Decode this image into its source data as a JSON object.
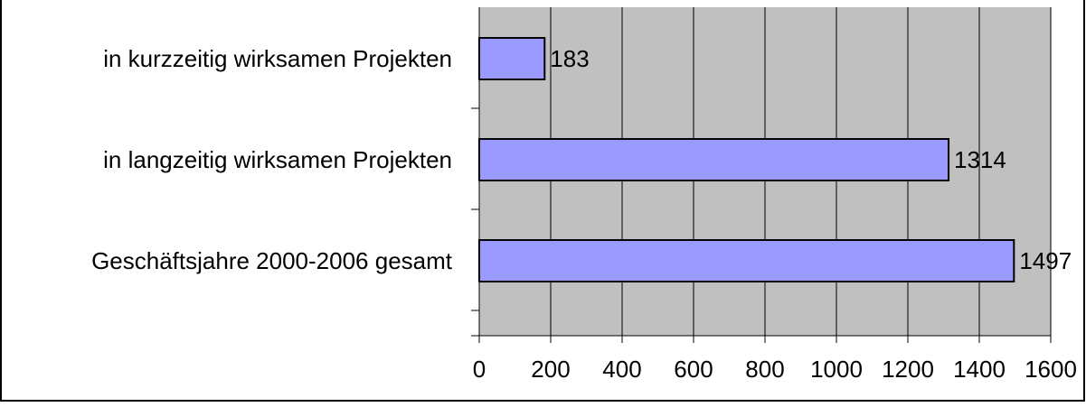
{
  "chart_data": {
    "type": "bar",
    "orientation": "horizontal",
    "categories": [
      "in kurzzeitig wirksamen Projekten",
      "in langzeitig wirksamen Projekten",
      "Geschäftsjahre 2000-2006 gesamt"
    ],
    "values": [
      183,
      1314,
      1497
    ],
    "color": "#9999ff",
    "xlim": [
      0,
      1600
    ],
    "xticks": [
      0,
      200,
      400,
      600,
      800,
      1000,
      1200,
      1400,
      1600
    ],
    "grid": true
  }
}
